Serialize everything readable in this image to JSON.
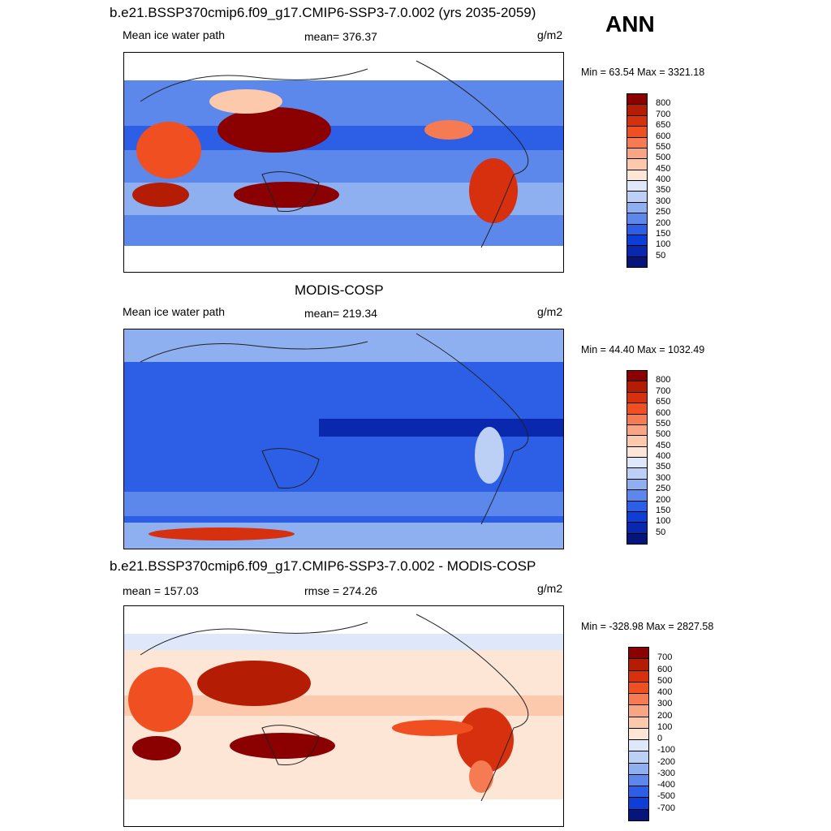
{
  "header": {
    "ann": "ANN"
  },
  "panels": [
    {
      "title": "b.e21.BSSP370cmip6.f09_g17.CMIP6-SSP3-7.0.002 (yrs 2035-2059)",
      "left_label": "Mean ice water path",
      "center_label": "mean= 376.37",
      "units": "g/m2",
      "minmax": "Min =  63.54 Max = 3321.18",
      "palette": "sequential",
      "colorbar_labels": [
        "800",
        "700",
        "650",
        "600",
        "550",
        "500",
        "450",
        "400",
        "350",
        "300",
        "250",
        "200",
        "150",
        "100",
        "50"
      ]
    },
    {
      "title": "MODIS-COSP",
      "left_label": "Mean ice water path",
      "center_label": "mean= 219.34",
      "units": "g/m2",
      "minmax": "Min =  44.40 Max = 1032.49",
      "palette": "sequential",
      "colorbar_labels": [
        "800",
        "700",
        "650",
        "600",
        "550",
        "500",
        "450",
        "400",
        "350",
        "300",
        "250",
        "200",
        "150",
        "100",
        "50"
      ]
    },
    {
      "title": "b.e21.BSSP370cmip6.f09_g17.CMIP6-SSP3-7.0.002 - MODIS-COSP",
      "left_label": "mean = 157.03",
      "center_label": "rmse = 274.26",
      "units": "g/m2",
      "minmax": "Min = -328.98 Max = 2827.58",
      "palette": "diverging",
      "colorbar_labels": [
        "700",
        "600",
        "500",
        "400",
        "300",
        "200",
        "100",
        "0",
        "-100",
        "-200",
        "-300",
        "-400",
        "-500",
        "-700"
      ]
    }
  ],
  "colors": {
    "sequential": [
      "#8b0000",
      "#b51c04",
      "#d6300e",
      "#ef4f21",
      "#f77b52",
      "#f8a583",
      "#fcc9ad",
      "#fde6d6",
      "#dfe8fb",
      "#bcd0f6",
      "#8fb0f0",
      "#5d88eb",
      "#2d5ee6",
      "#0d3fd8",
      "#0a28ad",
      "#06157a"
    ],
    "diverging": [
      "#8b0000",
      "#b51c04",
      "#d6300e",
      "#ef4f21",
      "#f77b52",
      "#f8a583",
      "#fcc9ad",
      "#fde6d6",
      "#dfe8fb",
      "#bcd0f6",
      "#8fb0f0",
      "#5d88eb",
      "#2d5ee6",
      "#0d3fd8",
      "#06157a"
    ]
  }
}
